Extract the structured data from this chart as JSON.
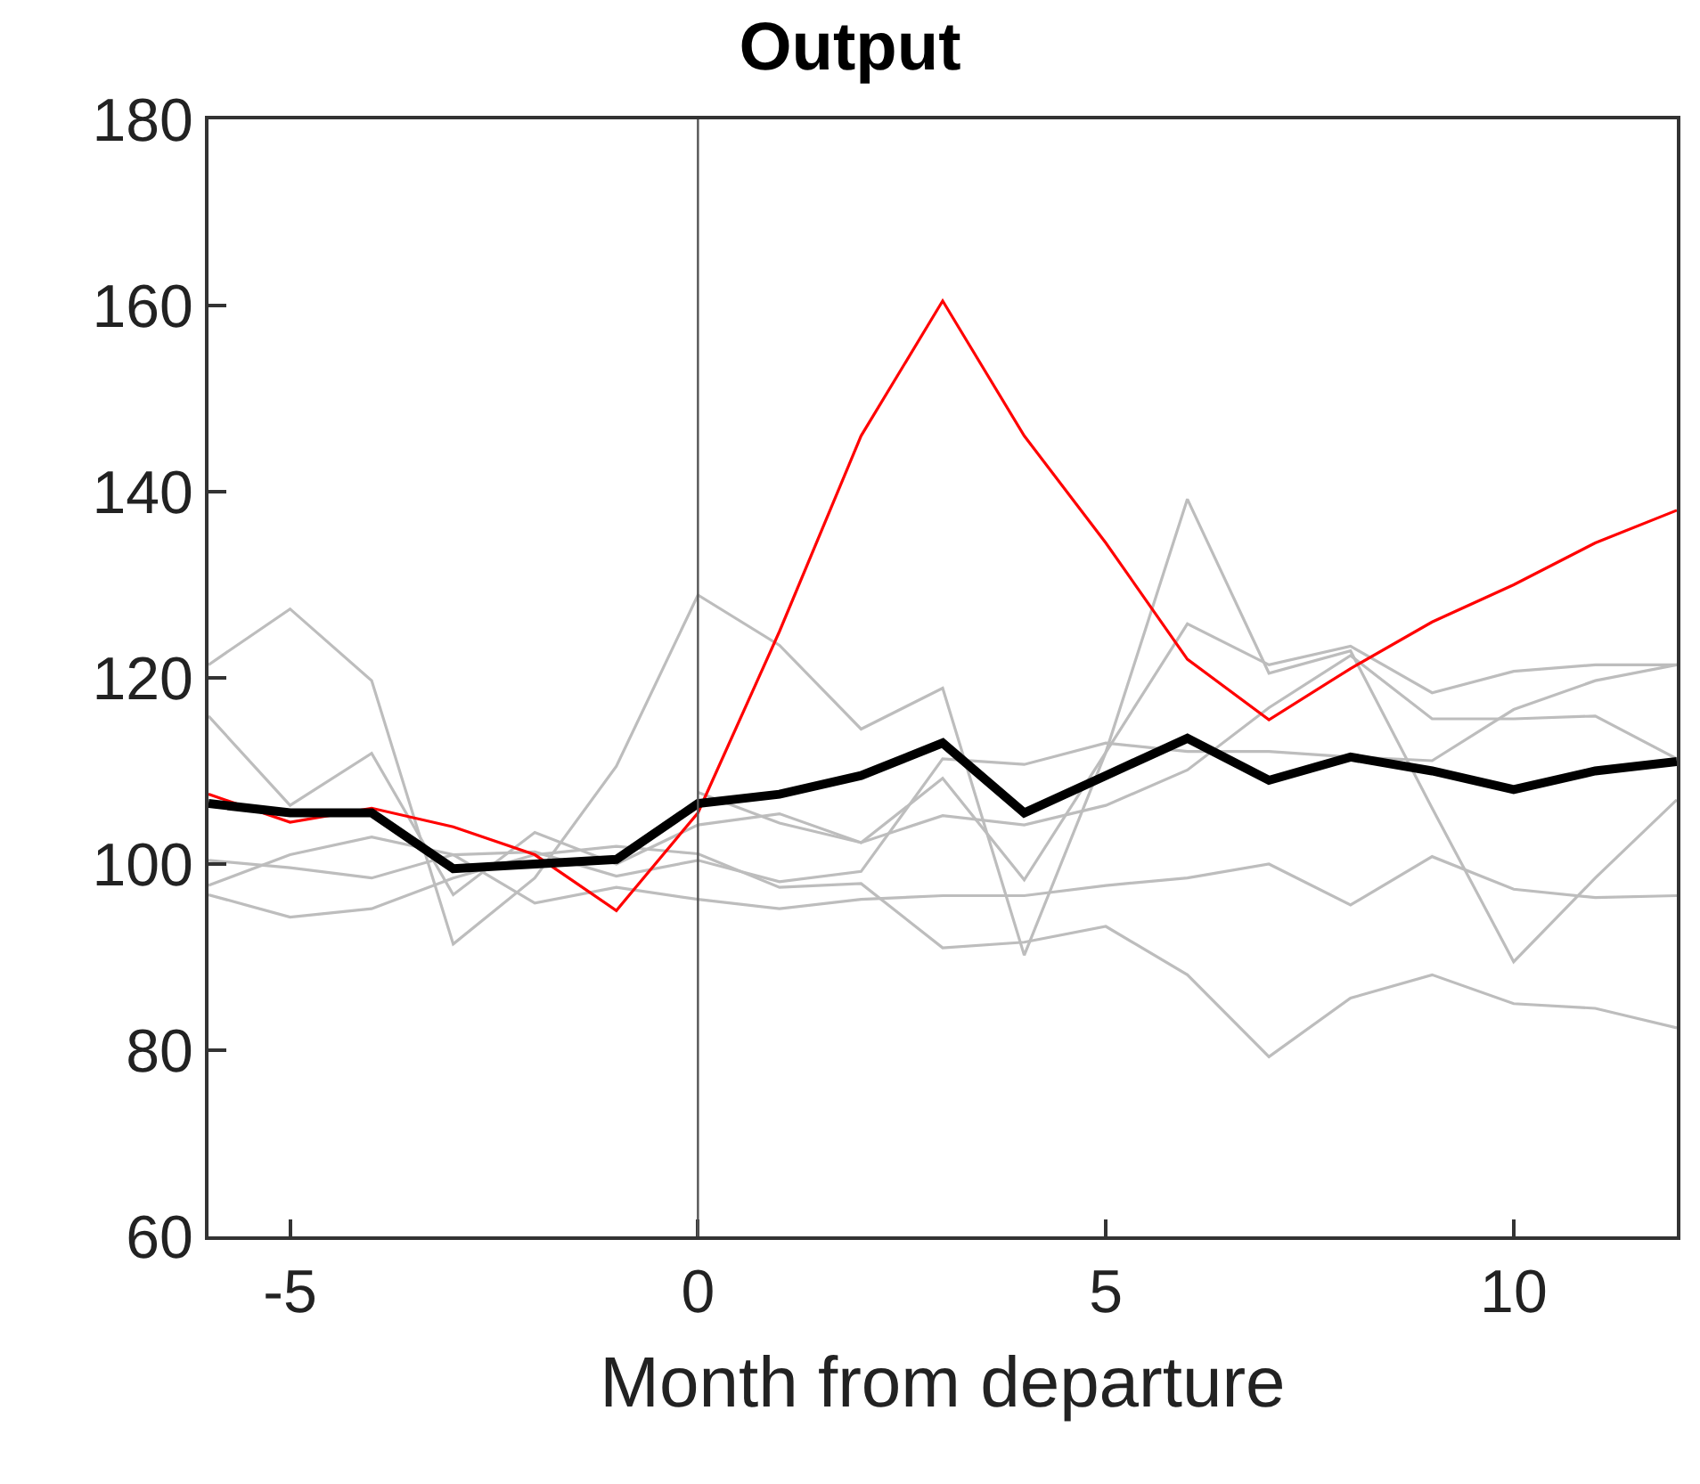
{
  "chart_data": {
    "type": "line",
    "title": "Output",
    "xlabel": "Month from departure",
    "x": [
      -6,
      -5,
      -4,
      -3,
      -2,
      -1,
      0,
      1,
      2,
      3,
      4,
      5,
      6,
      7,
      8,
      9,
      10,
      11,
      12
    ],
    "xlim": [
      -6,
      12
    ],
    "xticks": [
      -5,
      0,
      5,
      10
    ],
    "ylim": [
      60,
      180
    ],
    "yticks": [
      60,
      80,
      100,
      120,
      140,
      160,
      180
    ],
    "grid": false,
    "marker": "none",
    "line_style": "solid",
    "ref_lines": [
      {
        "axis": "x",
        "value": 0,
        "color": "#555555"
      }
    ],
    "series": [
      {
        "color": "#bdbdbd",
        "values": [
          121.4,
          127.4,
          119.7,
          91.4,
          98.5,
          110.5,
          128.9,
          123.5,
          114.5,
          118.9,
          90.2,
          112,
          139.2,
          120.5,
          122.9,
          106,
          89.5,
          98.5,
          106.9
        ]
      },
      {
        "color": "#bdbdbd",
        "values": [
          115.9,
          106.3,
          111.9,
          96.7,
          103.4,
          100,
          104.2,
          105.4,
          102.3,
          109.2,
          98.3,
          112,
          125.8,
          121.4,
          123.4,
          118.4,
          120.7,
          121.4,
          121.4
        ]
      },
      {
        "color": "#bdbdbd",
        "values": [
          100.4,
          99.6,
          98.5,
          101,
          101.3,
          98.7,
          100.4,
          98.1,
          99.2,
          111.3,
          110.7,
          113,
          112.1,
          112.1,
          111.5,
          111.1,
          116.6,
          119.7,
          121.4
        ]
      },
      {
        "color": "#bdbdbd",
        "values": [
          97.7,
          101,
          102.9,
          101,
          95.8,
          97.5,
          96.2,
          95.2,
          96.2,
          96.6,
          96.6,
          97.7,
          98.5,
          100,
          95.6,
          100.8,
          97.3,
          96.4,
          96.6
        ]
      },
      {
        "color": "#bdbdbd",
        "values": [
          96.7,
          94.3,
          95.2,
          98.5,
          101,
          101.9,
          101.1,
          97.5,
          97.9,
          91,
          91.6,
          93.3,
          88.1,
          79.3,
          85.6,
          88.1,
          85,
          84.5,
          82.4
        ]
      },
      {
        "color": "#bdbdbd",
        "values": [
          null,
          null,
          null,
          null,
          null,
          null,
          107.7,
          104.4,
          102.3,
          105.2,
          104.2,
          106.3,
          110.1,
          116.8,
          122.4,
          115.6,
          115.6,
          115.9,
          111.3
        ]
      },
      {
        "color": "#ff0000",
        "values": [
          107.5,
          104.5,
          106,
          104,
          101,
          95,
          105.5,
          125,
          146,
          160.5,
          146,
          134.5,
          122,
          115.5,
          121,
          126,
          130,
          134.5,
          138
        ]
      },
      {
        "color": "#000000",
        "values": [
          106.5,
          105.5,
          105.5,
          99.5,
          100,
          100.5,
          106.5,
          107.5,
          109.5,
          113,
          105.5,
          109.5,
          113.5,
          109,
          111.5,
          110,
          108,
          110,
          111
        ]
      }
    ]
  }
}
